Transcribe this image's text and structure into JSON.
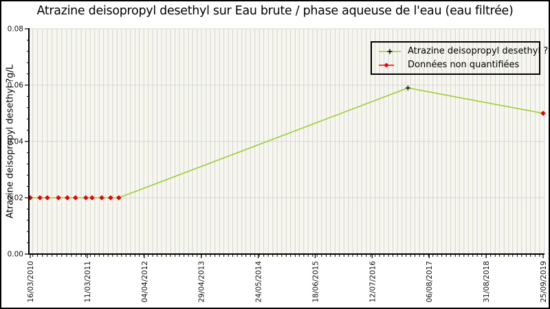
{
  "colors": {
    "line": "#9acd32",
    "unquantified_marker": "#ee0000",
    "quantified_marker": "#000000",
    "grid": "#d4d4d4",
    "plot_bg": "#f7f7ef",
    "axis": "#000000",
    "tick_label": "#1a1a1a"
  },
  "chart_data": {
    "type": "line",
    "title": "Atrazine deisopropyl desethyl sur Eau brute / phase aqueuse de l'eau (eau filtrée)",
    "xlabel": "",
    "ylabel": "Atrazine deisopropyl desethyl ?g/L",
    "ylim": [
      0,
      0.08
    ],
    "y_ticks": [
      "0.00",
      "0.02",
      "0.04",
      "0.06",
      "0.08"
    ],
    "y_minor_step": 0.004,
    "x_minor_grid": "monthly",
    "grid": "horizontal major lines + vertical monthly lines",
    "legend_position": "top-right",
    "x_ticks": [
      "16/03/2010",
      "11/03/2011",
      "04/04/2012",
      "29/04/2013",
      "24/05/2014",
      "18/06/2015",
      "12/07/2016",
      "06/08/2017",
      "31/08/2018",
      "25/09/2019"
    ],
    "legend": [
      {
        "label": "Atrazine deisopropyl desethyl ?g/L",
        "marker": "black-plus-on-green-line"
      },
      {
        "label": "Données non quantifiées",
        "marker": "red-diamond-on-red-line"
      }
    ],
    "series_name": "Atrazine deisopropyl desethyl ?g/L",
    "points": [
      {
        "date": "16/03/2010",
        "value": 0.02,
        "quantified": false
      },
      {
        "date": "16/05/2010",
        "value": 0.02,
        "quantified": false
      },
      {
        "date": "02/07/2010",
        "value": 0.02,
        "quantified": false
      },
      {
        "date": "10/09/2010",
        "value": 0.02,
        "quantified": false
      },
      {
        "date": "05/11/2010",
        "value": 0.02,
        "quantified": false
      },
      {
        "date": "27/12/2010",
        "value": 0.02,
        "quantified": false
      },
      {
        "date": "02/03/2011",
        "value": 0.02,
        "quantified": false
      },
      {
        "date": "13/04/2011",
        "value": 0.02,
        "quantified": false
      },
      {
        "date": "18/06/2011",
        "value": 0.02,
        "quantified": false
      },
      {
        "date": "18/08/2011",
        "value": 0.02,
        "quantified": false
      },
      {
        "date": "13/10/2011",
        "value": 0.02,
        "quantified": false
      },
      {
        "date": "14/03/2017",
        "value": 0.059,
        "quantified": true
      },
      {
        "date": "25/09/2019",
        "value": 0.05,
        "quantified": false
      }
    ]
  }
}
